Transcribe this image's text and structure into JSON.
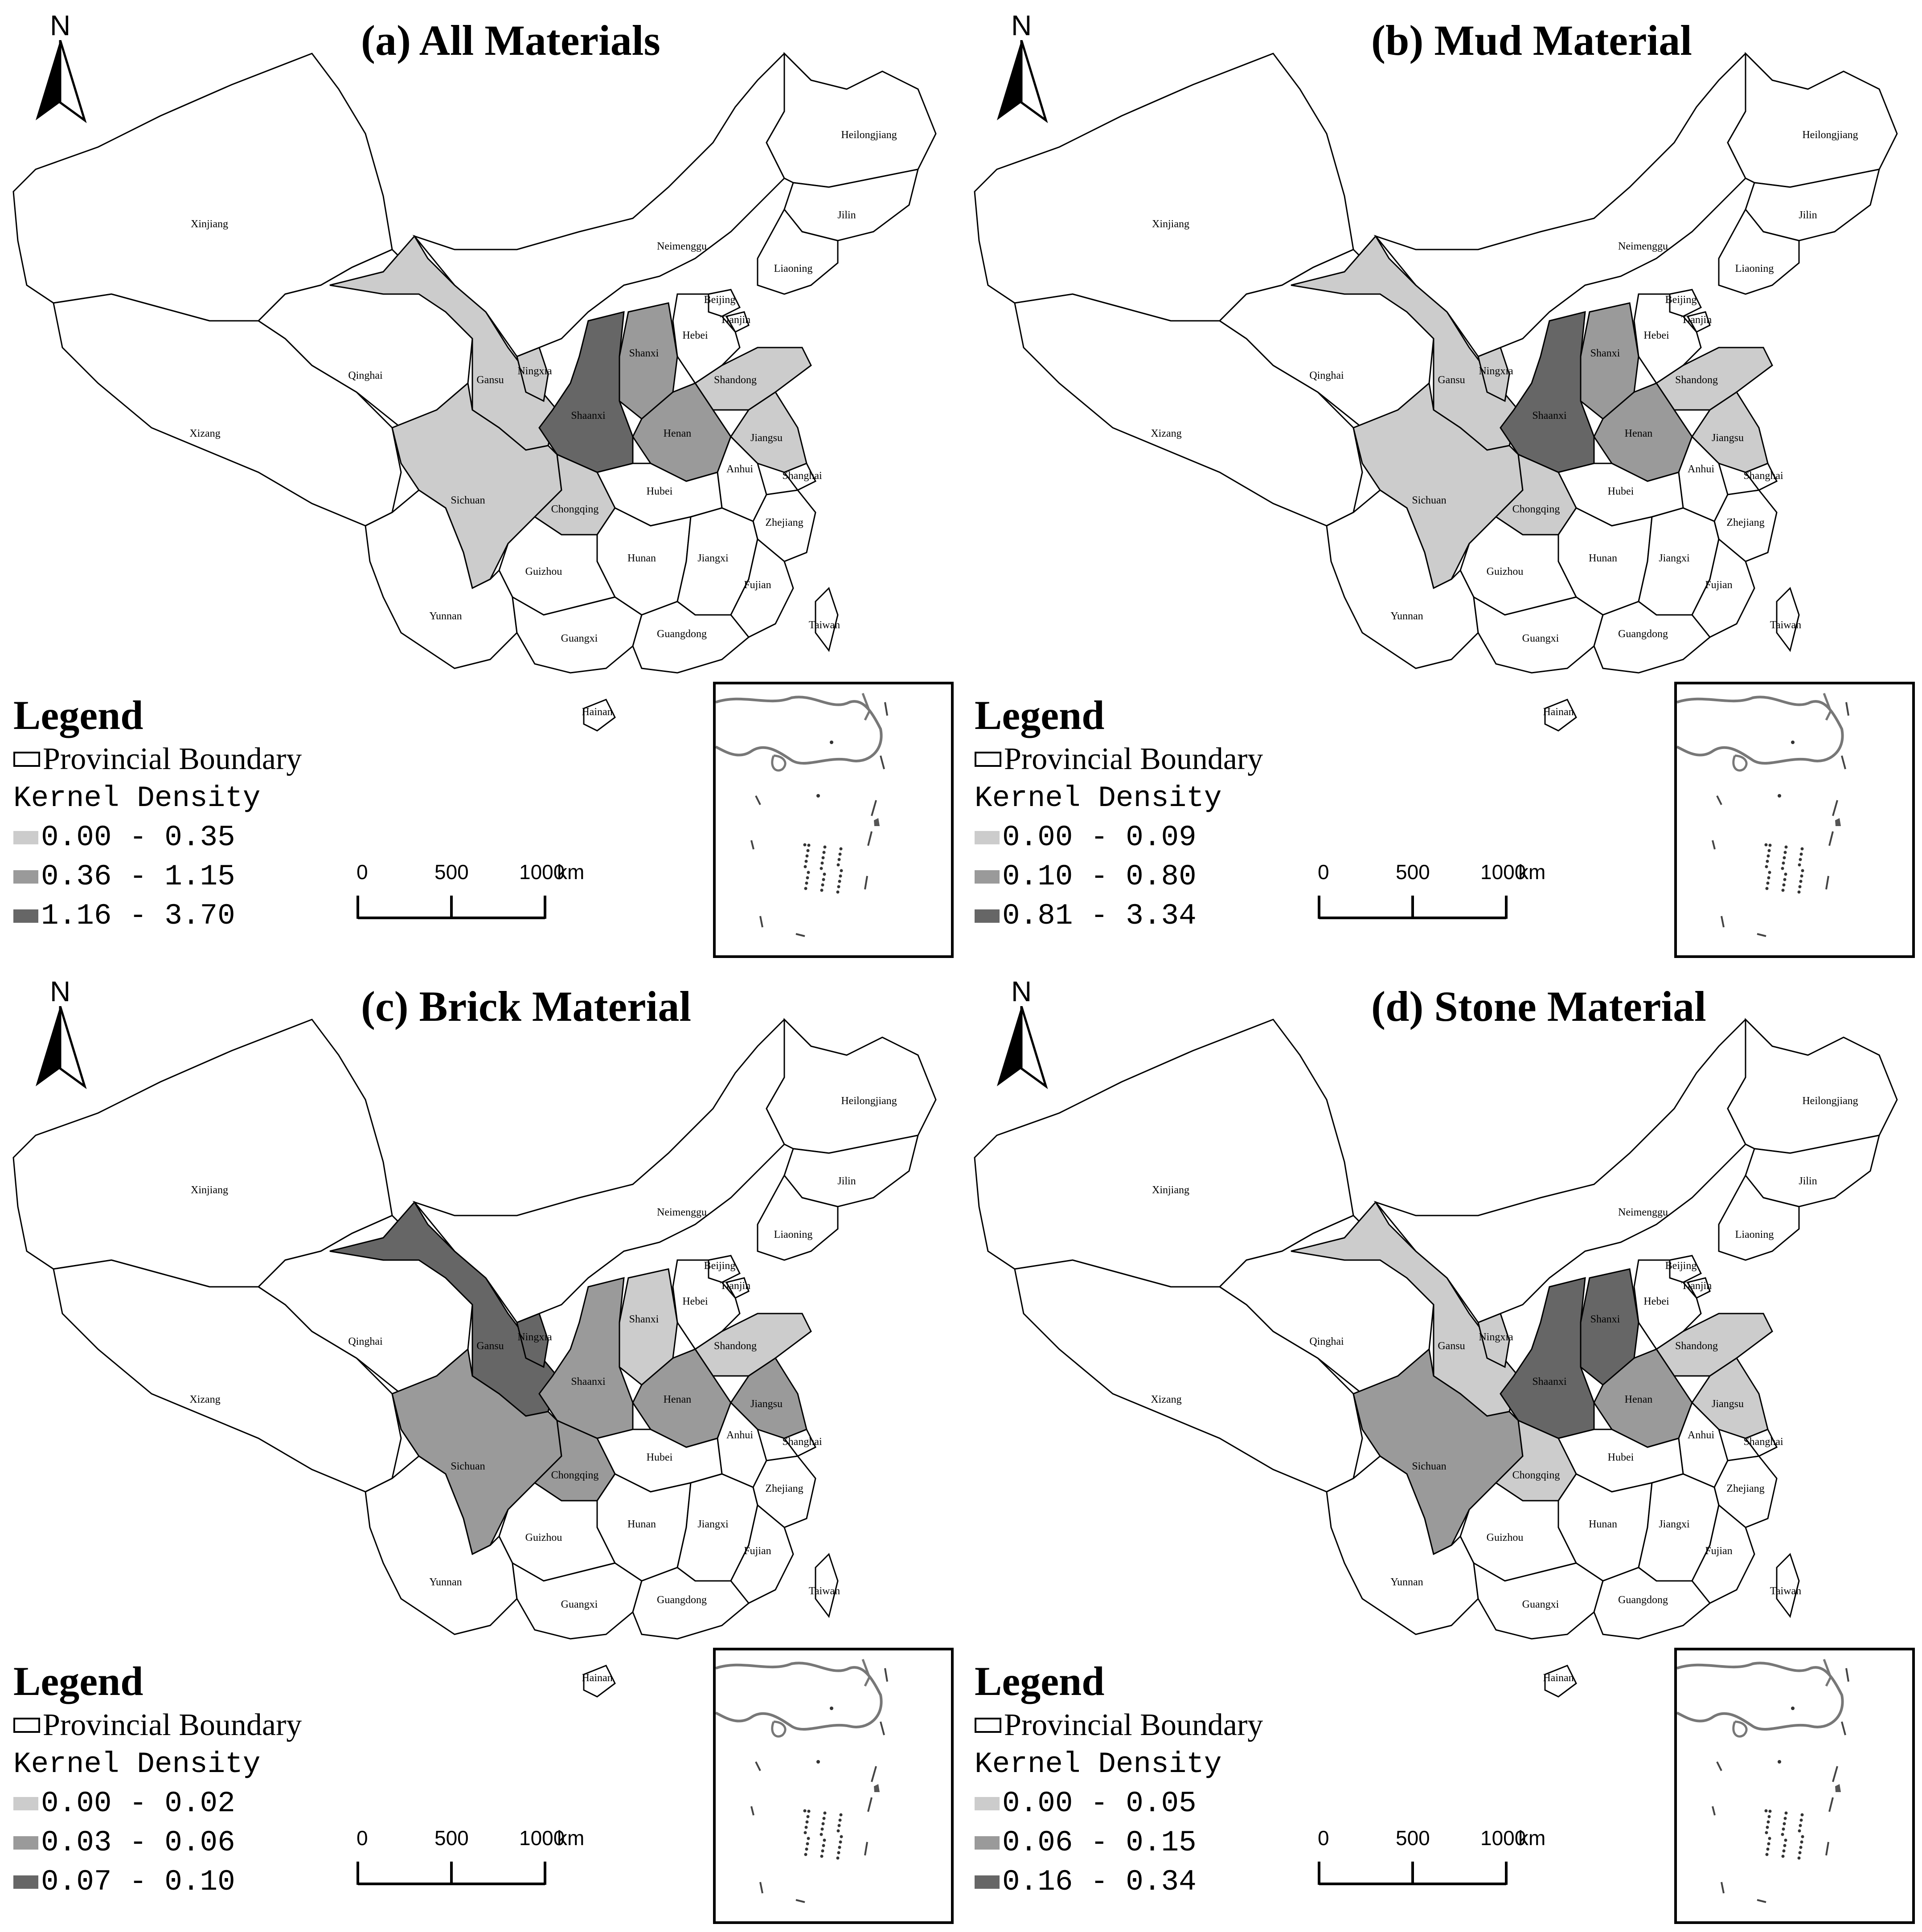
{
  "colors": {
    "class_low": "#cccccc",
    "class_mid": "#9a9a9a",
    "class_high": "#666666",
    "none": "#ffffff",
    "boundary": "#000000"
  },
  "north_label": "N",
  "legend": {
    "title": "Legend",
    "boundary_label": "Provincial Boundary",
    "density_label": "Kernel Density"
  },
  "scale": {
    "ticks": [
      "0",
      "500",
      "1000"
    ],
    "unit": "km"
  },
  "provinces": [
    "Xinjiang",
    "Xizang",
    "Qinghai",
    "Gansu",
    "Ningxia",
    "Neimenggu",
    "Heilongjiang",
    "Jilin",
    "Liaoning",
    "Beijing",
    "Tianjin",
    "Hebei",
    "Shanxi",
    "Shaanxi",
    "Shandong",
    "Henan",
    "Jiangsu",
    "Anhui",
    "Shanghai",
    "Hubei",
    "Sichuan",
    "Chongqing",
    "Zhejiang",
    "Hunan",
    "Jiangxi",
    "Guizhou",
    "Fujian",
    "Yunnan",
    "Guangxi",
    "Guangdong",
    "Taiwan",
    "Hainan"
  ],
  "panels": [
    {
      "title": "(a) All Materials",
      "classes": [
        "0.00 - 0.35",
        "0.36 - 1.15",
        "1.16 - 3.70"
      ],
      "shading": {
        "Gansu": 1,
        "Sichuan": 1,
        "Ningxia": 1,
        "Chongqing": 1,
        "Shandong": 1,
        "Jiangsu": 1,
        "Shanxi": 2,
        "Henan": 2,
        "Shaanxi": 3
      }
    },
    {
      "title": "(b) Mud Material",
      "classes": [
        "0.00 - 0.09",
        "0.10 - 0.80",
        "0.81 - 3.34"
      ],
      "shading": {
        "Gansu": 1,
        "Sichuan": 1,
        "Ningxia": 1,
        "Chongqing": 1,
        "Shandong": 1,
        "Jiangsu": 1,
        "Shanxi": 2,
        "Henan": 2,
        "Shaanxi": 3
      }
    },
    {
      "title": "(c) Brick Material",
      "classes": [
        "0.00 - 0.02",
        "0.03 - 0.06",
        "0.07 - 0.10"
      ],
      "shading": {
        "Shanxi": 1,
        "Shandong": 1,
        "Sichuan": 2,
        "Shaanxi": 2,
        "Henan": 2,
        "Jiangsu": 2,
        "Chongqing": 2,
        "Gansu": 3,
        "Ningxia": 3
      }
    },
    {
      "title": "(d) Stone Material",
      "classes": [
        "0.00 - 0.05",
        "0.06 - 0.15",
        "0.16 - 0.34"
      ],
      "shading": {
        "Gansu": 1,
        "Shandong": 1,
        "Jiangsu": 1,
        "Ningxia": 1,
        "Chongqing": 1,
        "Sichuan": 2,
        "Henan": 2,
        "Shanxi": 3,
        "Shaanxi": 3
      }
    }
  ]
}
